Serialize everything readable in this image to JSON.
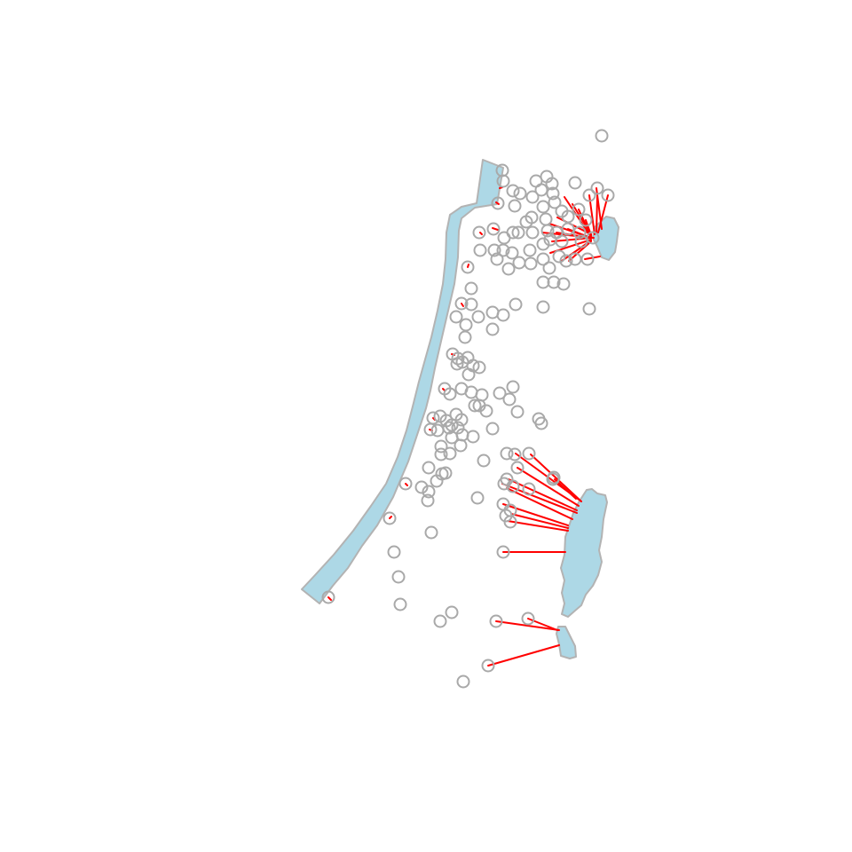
{
  "figure": {
    "kind": "map of observation sites linked to the nearest water body",
    "legend": "none",
    "axes": "none"
  },
  "colors": {
    "water_fill": "#add8e6",
    "water_outline": "#b3b3b3",
    "site_marker": "#a9a9a9",
    "nearest_link": "#ff0000",
    "background": "#ffffff"
  },
  "water_bodies": [
    {
      "id": "coastal-strip"
    },
    {
      "id": "northern-lake"
    },
    {
      "id": "southern-lake"
    },
    {
      "id": "southern-pond"
    }
  ]
}
